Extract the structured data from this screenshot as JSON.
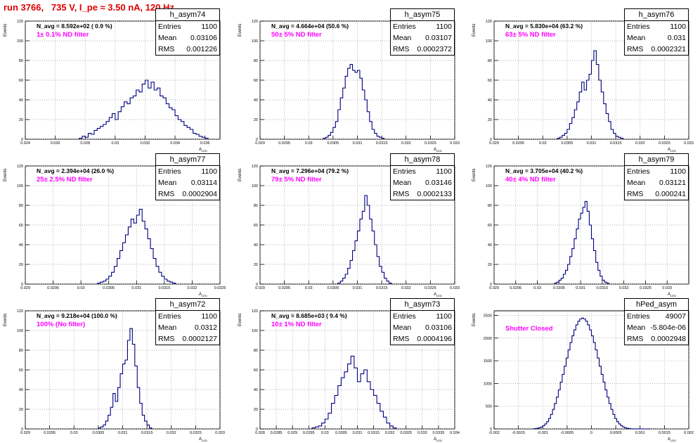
{
  "page_title": "run 3766,   735 V, I_pe ≈ 3.50 nA, 120 Hz",
  "axis_text": {
    "ylabel": "Events",
    "xlabel": "A",
    "xlabel_sub": "LED"
  },
  "colors": {
    "hist": "#000080",
    "filter": "#ff00ff",
    "title": "#e00000",
    "grid": "#999999"
  },
  "chart_data": [
    {
      "type": "bar",
      "name": "h_asym74",
      "navg": "N_avg = 8.592e+02 ( 0.9 %)",
      "filter": "1± 0.1% ND filter",
      "stats": {
        "entries": "1100",
        "mean": "0.03106",
        "rms": "0.001226"
      },
      "xlim": [
        0.024,
        0.037
      ],
      "ylim": [
        0,
        120
      ],
      "xticks": [
        "0.024",
        "0.026",
        "0.028",
        "0.03",
        "0.032",
        "0.034",
        "0.036"
      ],
      "xtick_values": [
        0.024,
        0.026,
        0.028,
        0.03,
        0.032,
        0.034,
        0.036
      ],
      "yticks": [
        "0",
        "20",
        "40",
        "60",
        "80",
        "100",
        "120"
      ],
      "x_start": 0.0276,
      "bin_width": 0.0002,
      "values": [
        1,
        3,
        2,
        6,
        5,
        9,
        11,
        13,
        15,
        18,
        22,
        26,
        20,
        28,
        33,
        38,
        36,
        42,
        44,
        50,
        48,
        56,
        60,
        52,
        58,
        50,
        52,
        44,
        42,
        36,
        32,
        30,
        24,
        20,
        18,
        14,
        12,
        10,
        6,
        5,
        3,
        2,
        1
      ]
    },
    {
      "type": "bar",
      "name": "h_asym75",
      "navg": "N_avg = 4.664e+04 (50.6 %)",
      "filter": "50± 5% ND filter",
      "stats": {
        "entries": "1100",
        "mean": "0.03107",
        "rms": "0.0002372"
      },
      "xlim": [
        0.029,
        0.033
      ],
      "ylim": [
        0,
        120
      ],
      "xticks": [
        "0.029",
        "0.0295",
        "0.03",
        "0.0305",
        "0.031",
        "0.0315",
        "0.032",
        "0.0325",
        "0.033"
      ],
      "xtick_values": [
        0.029,
        0.0295,
        0.03,
        0.0305,
        0.031,
        0.0315,
        0.032,
        0.0325,
        0.033
      ],
      "yticks": [
        "0",
        "20",
        "40",
        "60",
        "80",
        "100",
        "120"
      ],
      "x_start": 0.0303,
      "bin_width": 5e-05,
      "values": [
        1,
        2,
        4,
        7,
        12,
        18,
        30,
        42,
        52,
        64,
        72,
        76,
        70,
        68,
        70,
        62,
        50,
        40,
        28,
        18,
        10,
        6,
        3,
        2,
        1
      ]
    },
    {
      "type": "bar",
      "name": "h_asym76",
      "navg": "N_avg = 5.830e+04 (63.2 %)",
      "filter": "63± 5% ND filter",
      "stats": {
        "entries": "1100",
        "mean": "0.031",
        "rms": "0.0002321"
      },
      "xlim": [
        0.029,
        0.033
      ],
      "ylim": [
        0,
        120
      ],
      "xticks": [
        "0.029",
        "0.0295",
        "0.03",
        "0.0305",
        "0.031",
        "0.0315",
        "0.032",
        "0.0325",
        "0.033"
      ],
      "xtick_values": [
        0.029,
        0.0295,
        0.03,
        0.0305,
        0.031,
        0.0315,
        0.032,
        0.0325,
        0.033
      ],
      "yticks": [
        "0",
        "20",
        "40",
        "60",
        "80",
        "100",
        "120"
      ],
      "x_start": 0.0303,
      "bin_width": 5e-05,
      "values": [
        1,
        2,
        4,
        6,
        10,
        16,
        22,
        30,
        38,
        48,
        58,
        50,
        60,
        66,
        80,
        90,
        76,
        60,
        48,
        36,
        26,
        18,
        10,
        6,
        3,
        2,
        1
      ]
    },
    {
      "type": "bar",
      "name": "h_asym77",
      "navg": "N_avg = 2.394e+04 (26.0 %)",
      "filter": "25± 2.5% ND filter",
      "stats": {
        "entries": "1100",
        "mean": "0.03114",
        "rms": "0.0002904"
      },
      "xlim": [
        0.029,
        0.0325
      ],
      "ylim": [
        0,
        120
      ],
      "xticks": [
        "0.029",
        "0.0295",
        "0.03",
        "0.0305",
        "0.031",
        "0.0315",
        "0.032",
        "0.0325"
      ],
      "xtick_values": [
        0.029,
        0.0295,
        0.03,
        0.0305,
        0.031,
        0.0315,
        0.032,
        0.0325
      ],
      "yticks": [
        "0",
        "20",
        "40",
        "60",
        "80",
        "100",
        "120"
      ],
      "x_start": 0.0303,
      "bin_width": 5e-05,
      "values": [
        1,
        2,
        3,
        5,
        8,
        12,
        18,
        26,
        34,
        42,
        50,
        58,
        66,
        62,
        70,
        76,
        64,
        56,
        46,
        36,
        26,
        18,
        12,
        8,
        5,
        3,
        2,
        1
      ]
    },
    {
      "type": "bar",
      "name": "h_asym78",
      "navg": "N_avg = 7.296e+04 (79.2 %)",
      "filter": "79± 5% ND filter",
      "stats": {
        "entries": "1100",
        "mean": "0.03146",
        "rms": "0.0002133"
      },
      "xlim": [
        0.029,
        0.033
      ],
      "ylim": [
        0,
        120
      ],
      "xticks": [
        "0.029",
        "0.0295",
        "0.03",
        "0.0305",
        "0.031",
        "0.0315",
        "0.032",
        "0.0325",
        "0.033"
      ],
      "xtick_values": [
        0.029,
        0.0295,
        0.03,
        0.0305,
        0.031,
        0.0315,
        0.032,
        0.0325,
        0.033
      ],
      "yticks": [
        "0",
        "20",
        "40",
        "60",
        "80",
        "100",
        "120"
      ],
      "x_start": 0.0306,
      "bin_width": 5e-05,
      "values": [
        1,
        3,
        6,
        10,
        16,
        24,
        34,
        44,
        54,
        66,
        74,
        90,
        80,
        66,
        54,
        40,
        28,
        18,
        12,
        6,
        3,
        1
      ]
    },
    {
      "type": "bar",
      "name": "h_asym79",
      "navg": "N_avg = 3.705e+04 (40.2 %)",
      "filter": "40± 4% ND filter",
      "stats": {
        "entries": "1100",
        "mean": "0.03121",
        "rms": "0.000241"
      },
      "xlim": [
        0.029,
        0.0335
      ],
      "ylim": [
        0,
        120
      ],
      "xticks": [
        "0.029",
        "0.0295",
        "0.03",
        "0.0305",
        "0.031",
        "0.0315",
        "0.032",
        "0.0325",
        "0.033"
      ],
      "xtick_values": [
        0.029,
        0.0295,
        0.03,
        0.0305,
        0.031,
        0.0315,
        0.032,
        0.0325,
        0.033
      ],
      "yticks": [
        "0",
        "20",
        "40",
        "60",
        "80",
        "100",
        "120"
      ],
      "x_start": 0.0304,
      "bin_width": 5e-05,
      "values": [
        1,
        2,
        4,
        6,
        10,
        14,
        20,
        28,
        36,
        46,
        56,
        66,
        72,
        78,
        84,
        74,
        60,
        46,
        34,
        22,
        14,
        8,
        4,
        2,
        1
      ]
    },
    {
      "type": "bar",
      "name": "h_asym72",
      "navg": "N_avg = 9.218e+04 (100.0 %)",
      "filter": "100% (No filter)",
      "stats": {
        "entries": "1100",
        "mean": "0.0312",
        "rms": "0.0002127"
      },
      "xlim": [
        0.029,
        0.033
      ],
      "ylim": [
        0,
        120
      ],
      "xticks": [
        "0.029",
        "0.0295",
        "0.03",
        "0.0305",
        "0.031",
        "0.0315",
        "0.032",
        "0.0325",
        "0.033"
      ],
      "xtick_values": [
        0.029,
        0.0295,
        0.03,
        0.0305,
        0.031,
        0.0315,
        0.032,
        0.0325,
        0.033
      ],
      "yticks": [
        "0",
        "20",
        "40",
        "60",
        "80",
        "100",
        "120"
      ],
      "x_start": 0.0305,
      "bin_width": 5e-05,
      "values": [
        1,
        2,
        4,
        8,
        14,
        22,
        36,
        28,
        42,
        56,
        66,
        70,
        90,
        102,
        86,
        64,
        42,
        26,
        14,
        8,
        4,
        1
      ]
    },
    {
      "type": "bar",
      "name": "h_asym73",
      "navg": "N_avg = 8.685e+03 ( 9.4 %)",
      "filter": "10± 1% ND filter",
      "stats": {
        "entries": "1100",
        "mean": "0.03106",
        "rms": "0.0004196"
      },
      "xlim": [
        0.028,
        0.034
      ],
      "ylim": [
        0,
        120
      ],
      "xticks": [
        "0.028",
        "0.0285",
        "0.029",
        "0.0295",
        "0.03",
        "0.0305",
        "0.031",
        "0.0315",
        "0.032",
        "0.0325",
        "0.033",
        "0.0335",
        "0.034"
      ],
      "xtick_values": [
        0.028,
        0.0285,
        0.029,
        0.0295,
        0.03,
        0.0305,
        0.031,
        0.0315,
        0.032,
        0.0325,
        0.033,
        0.0335,
        0.034
      ],
      "yticks": [
        "0",
        "20",
        "40",
        "60",
        "80",
        "100",
        "120"
      ],
      "x_start": 0.0296,
      "bin_width": 0.0001,
      "values": [
        1,
        2,
        3,
        6,
        10,
        16,
        26,
        34,
        44,
        52,
        58,
        66,
        74,
        62,
        48,
        56,
        60,
        48,
        40,
        34,
        26,
        18,
        12,
        6,
        3,
        1
      ]
    },
    {
      "type": "bar",
      "name": "hPed_asym",
      "navg": "",
      "filter": "Shutter Closed",
      "stats": {
        "entries": "49007",
        "mean": "-5.804e-06",
        "rms": "0.0002948"
      },
      "xlim": [
        -0.002,
        0.002
      ],
      "ylim": [
        0,
        2600
      ],
      "xticks": [
        "-0.002",
        "-0.0015",
        "-0.001",
        "-0.0005",
        "0",
        "0.0005",
        "0.001",
        "0.0015",
        "0.002"
      ],
      "xtick_values": [
        -0.002,
        -0.0015,
        -0.001,
        -0.0005,
        0,
        0.0005,
        0.001,
        0.0015,
        0.002
      ],
      "yticks": [
        "0",
        "500",
        "1000",
        "1500",
        "2000",
        "2500"
      ],
      "x_start": -0.0012,
      "bin_width": 4e-05,
      "values": [
        4,
        8,
        14,
        26,
        44,
        70,
        110,
        160,
        230,
        320,
        430,
        560,
        700,
        860,
        1030,
        1200,
        1380,
        1560,
        1740,
        1900,
        2050,
        2180,
        2290,
        2370,
        2420,
        2440,
        2420,
        2370,
        2290,
        2180,
        2050,
        1900,
        1740,
        1560,
        1380,
        1200,
        1030,
        860,
        700,
        560,
        430,
        320,
        230,
        160,
        110,
        70,
        44,
        26,
        14,
        8,
        4,
        2,
        1,
        1,
        1,
        0,
        1,
        0,
        0,
        1
      ]
    }
  ]
}
